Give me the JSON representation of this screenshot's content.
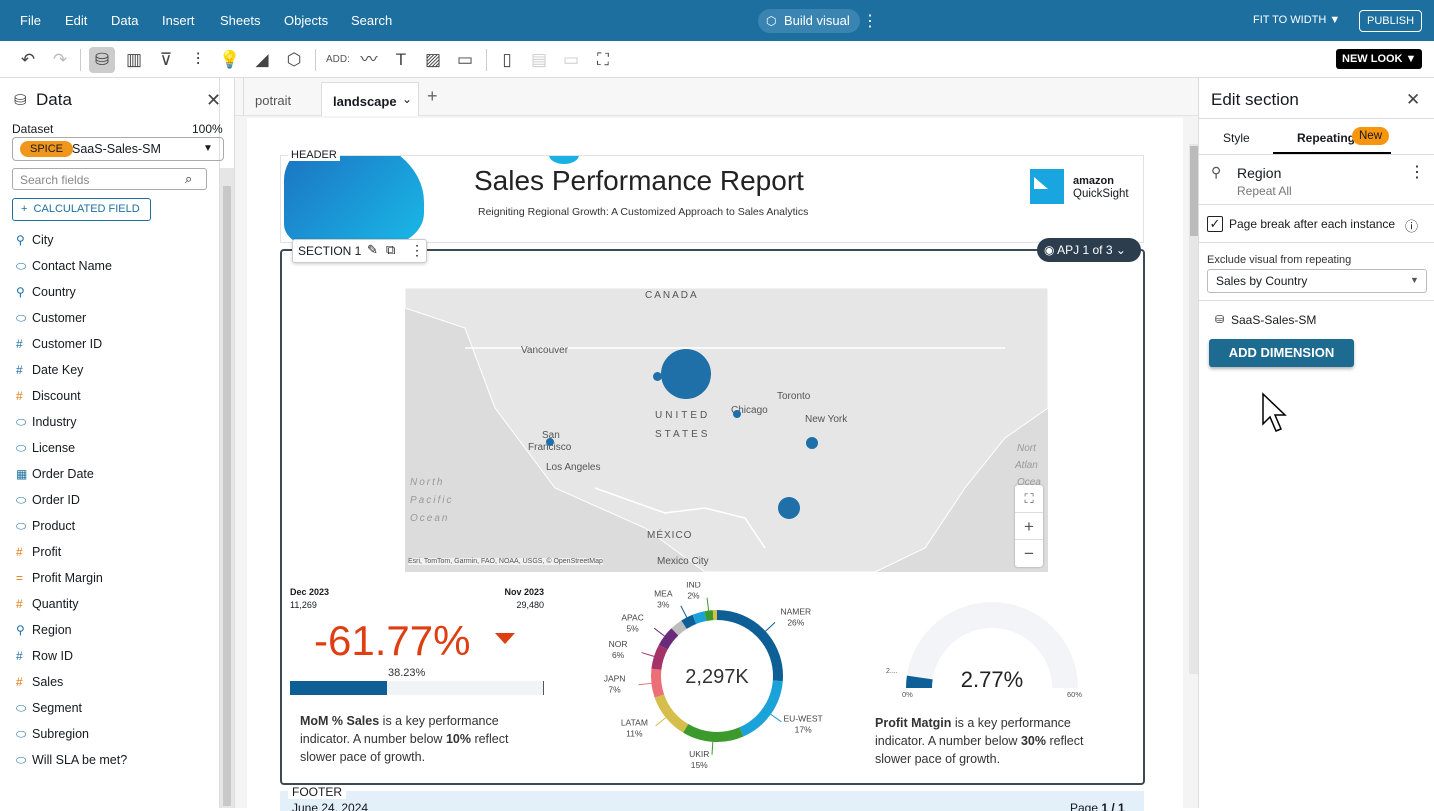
{
  "menu": [
    "File",
    "Edit",
    "Data",
    "Insert",
    "Sheets",
    "Objects",
    "Search"
  ],
  "build_visual": "Build visual",
  "fit_to_width": "FIT TO WIDTH",
  "publish": "PUBLISH",
  "toolbar": {
    "add_label": "ADD:",
    "new_look": "NEW LOOK"
  },
  "data_panel": {
    "title": "Data",
    "dataset_label": "Dataset",
    "dataset_pct": "100%",
    "spice": "SPICE",
    "dataset": "SaaS-Sales-SM",
    "search_placeholder": "Search fields",
    "calc_field": "CALCULATED FIELD",
    "fields": [
      {
        "name": "City",
        "type": "geo"
      },
      {
        "name": "Contact Name",
        "type": "dim"
      },
      {
        "name": "Country",
        "type": "geo"
      },
      {
        "name": "Customer",
        "type": "dim"
      },
      {
        "name": "Customer ID",
        "type": "num-dim"
      },
      {
        "name": "Date Key",
        "type": "num-dim"
      },
      {
        "name": "Discount",
        "type": "measure"
      },
      {
        "name": "Industry",
        "type": "dim"
      },
      {
        "name": "License",
        "type": "dim"
      },
      {
        "name": "Order Date",
        "type": "date"
      },
      {
        "name": "Order ID",
        "type": "dim"
      },
      {
        "name": "Product",
        "type": "dim"
      },
      {
        "name": "Profit",
        "type": "measure"
      },
      {
        "name": "Profit Margin",
        "type": "calc"
      },
      {
        "name": "Quantity",
        "type": "measure"
      },
      {
        "name": "Region",
        "type": "geo"
      },
      {
        "name": "Row ID",
        "type": "num-dim"
      },
      {
        "name": "Sales",
        "type": "measure"
      },
      {
        "name": "Segment",
        "type": "dim"
      },
      {
        "name": "Subregion",
        "type": "dim"
      },
      {
        "name": "Will SLA be met?",
        "type": "dim"
      }
    ]
  },
  "sheets": [
    "potrait",
    "landscape"
  ],
  "report": {
    "header_tag": "HEADER",
    "title": "Sales Performance Report",
    "subtitle": "Reigniting Regional Growth: A Customized Approach to Sales Analytics",
    "logo_line1": "amazon",
    "logo_line2": "QuickSight",
    "section_tag": "SECTION 1",
    "repeat_badge": "APJ 1 of 3",
    "footer_tag": "FOOTER",
    "footer_date": "June 24, 2024",
    "footer_page": "Page",
    "footer_page_num": "1 / 1"
  },
  "map": {
    "labels": [
      "CANADA",
      "Vancouver",
      "UNITED",
      "STATES",
      "Chicago",
      "Toronto",
      "New York",
      "San",
      "Francisco",
      "Los Angeles",
      "North",
      "Pacific",
      "Ocean",
      "MÉXICO",
      "Mexico City",
      "Nort",
      "Atlan",
      "Ocea"
    ],
    "attribution": "Esri, TomTom, Garmin, FAO, NOAA, USGS, © OpenStreetMap"
  },
  "kpi": {
    "left_period": "Dec 2023",
    "left_value": "11,269",
    "right_period": "Nov 2023",
    "right_value": "29,480",
    "value": "-61.77%",
    "progress_label": "38.23%",
    "progress": 0.3823,
    "desc_bold": "MoM % Sales",
    "desc_1": " is a key performance indicator. A number below ",
    "desc_bold2": "10%",
    "desc_2": " reflect slower pace of growth."
  },
  "chart_data": {
    "type": "pie",
    "title": "",
    "center_label": "2,297K",
    "slices": [
      {
        "name": "NAMER",
        "value": 26,
        "color": "#0e5f95"
      },
      {
        "name": "EU-WEST",
        "value": 17,
        "color": "#1ba3d9"
      },
      {
        "name": "UKIR",
        "value": 15,
        "color": "#3b9a2b"
      },
      {
        "name": "LATAM",
        "value": 11,
        "color": "#d6be4c"
      },
      {
        "name": "JAPN",
        "value": 7,
        "color": "#ec6f78"
      },
      {
        "name": "NOR",
        "value": 6,
        "color": "#a4336a"
      },
      {
        "name": "APAC",
        "value": 5,
        "color": "#6a2a7c"
      },
      {
        "name": "",
        "value": 3,
        "color": "#bdbdbd"
      },
      {
        "name": "MEA",
        "value": 3,
        "color": "#0e5f95"
      },
      {
        "name": "",
        "value": 3,
        "color": "#1ba3d9"
      },
      {
        "name": "IND",
        "value": 2,
        "color": "#3b9a2b"
      },
      {
        "name": "",
        "value": 1,
        "color": "#d6be4c"
      }
    ]
  },
  "gauge": {
    "value": 2.77,
    "min": 0,
    "max": 60,
    "value_label": "2.77%",
    "min_label": "0%",
    "max_label": "60%",
    "small_label": "2....",
    "desc_bold": "Profit Matgin",
    "desc_1": " is a key performance indicator. A number below ",
    "desc_bold2": "30%",
    "desc_2": " reflect slower pace of growth."
  },
  "edit_section": {
    "title": "Edit section",
    "tabs": [
      "Style",
      "Repeating"
    ],
    "new_badge": "New",
    "dimension": "Region",
    "repeat": "Repeat All",
    "page_break": "Page break after each instance",
    "page_break_checked": true,
    "exclude_label": "Exclude visual from repeating",
    "exclude_value": "Sales by Country",
    "dataset": "SaaS-Sales-SM",
    "add_dimension": "ADD DIMENSION"
  }
}
